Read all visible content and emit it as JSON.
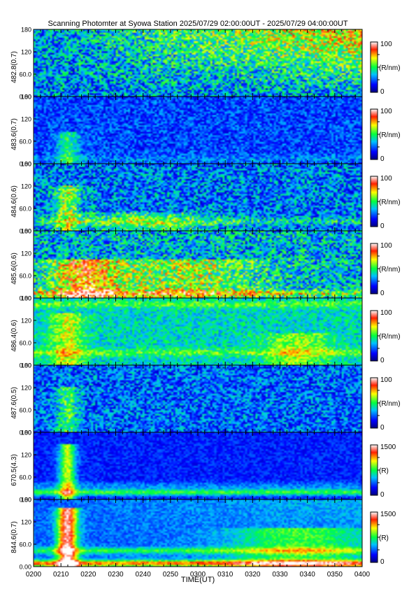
{
  "chart_data": {
    "type": "heatmap",
    "title": "Scanning Photomter at Syowa Station 2025/07/29 02:00:00UT - 2025/07/29 04:00:00UT",
    "xlabel": "TIME(UT)",
    "x_ticks": [
      "0200",
      "0210",
      "0220",
      "0230",
      "0240",
      "0250",
      "0300",
      "0310",
      "0320",
      "0330",
      "0340",
      "0350",
      "0400"
    ],
    "y_ticks": [
      "0.00",
      "60.0",
      "120",
      "180"
    ],
    "ylim": [
      0,
      180
    ],
    "panels": [
      {
        "ylabel": "482.8(0.7)",
        "cbar_max": "100",
        "cbar_min": "0",
        "cbar_unit": "(R/nm)",
        "vmax": 100,
        "base": 0.3,
        "noise": 0.45,
        "trend": 0.45,
        "bursts": [],
        "bands": []
      },
      {
        "ylabel": "483.6(0.7)",
        "cbar_max": "100",
        "cbar_min": "0",
        "cbar_unit": "(R/nm)",
        "vmax": 100,
        "base": 0.22,
        "noise": 0.25,
        "trend": 0.0,
        "bursts": [
          {
            "t": 0.1,
            "w": 0.035,
            "h": 0.5,
            "a": 0.25
          }
        ],
        "bands": [
          {
            "y": 0.08,
            "a": 0.08
          }
        ]
      },
      {
        "ylabel": "484.6(0.6)",
        "cbar_max": "100",
        "cbar_min": "0",
        "cbar_unit": "(R/nm)",
        "vmax": 100,
        "base": 0.28,
        "noise": 0.4,
        "trend": 0.0,
        "bursts": [
          {
            "t": 0.1,
            "w": 0.04,
            "h": 0.7,
            "a": 0.3
          },
          {
            "t": 0.35,
            "w": 0.2,
            "h": 0.3,
            "a": 0.2
          }
        ],
        "bands": [
          {
            "y": 0.15,
            "a": 0.15
          }
        ]
      },
      {
        "ylabel": "485.6(0.6)",
        "cbar_max": "100",
        "cbar_min": "0",
        "cbar_unit": "(R/nm)",
        "vmax": 100,
        "base": 0.35,
        "noise": 0.45,
        "trend": 0.0,
        "bursts": [
          {
            "t": 0.15,
            "w": 0.1,
            "h": 0.6,
            "a": 0.4
          },
          {
            "t": 0.45,
            "w": 0.25,
            "h": 0.6,
            "a": 0.25
          }
        ],
        "bands": [
          {
            "y": 0.08,
            "a": 0.25
          }
        ]
      },
      {
        "ylabel": "486.4(0.6)",
        "cbar_max": "100",
        "cbar_min": "0",
        "cbar_unit": "(R/nm)",
        "vmax": 100,
        "base": 0.4,
        "noise": 0.25,
        "trend": 0.0,
        "bursts": [
          {
            "t": 0.1,
            "w": 0.05,
            "h": 0.8,
            "a": 0.25
          },
          {
            "t": 0.8,
            "w": 0.1,
            "h": 0.5,
            "a": 0.2
          }
        ],
        "bands": [
          {
            "y": 0.2,
            "a": 0.15
          },
          {
            "y": 0.92,
            "a": 0.15
          }
        ]
      },
      {
        "ylabel": "487.6(0.5)",
        "cbar_max": "100",
        "cbar_min": "0",
        "cbar_unit": "(R/nm)",
        "vmax": 100,
        "base": 0.26,
        "noise": 0.35,
        "trend": 0.0,
        "bursts": [
          {
            "t": 0.1,
            "w": 0.035,
            "h": 0.7,
            "a": 0.25
          }
        ],
        "bands": []
      },
      {
        "ylabel": "670.5(4.3)",
        "cbar_max": "1500",
        "cbar_min": "0",
        "cbar_unit": "(R)",
        "vmax": 1500,
        "base": 0.18,
        "noise": 0.15,
        "trend": 0.0,
        "bursts": [
          {
            "t": 0.1,
            "w": 0.025,
            "h": 0.85,
            "a": 0.45
          }
        ],
        "bands": [
          {
            "y": 0.12,
            "a": 0.35
          },
          {
            "y": 0.22,
            "a": 0.1
          }
        ]
      },
      {
        "ylabel": "844.6(0.7)",
        "cbar_max": "1500",
        "cbar_min": "0",
        "cbar_unit": "(R)",
        "vmax": 1500,
        "base": 0.25,
        "noise": 0.15,
        "trend": 0.1,
        "bursts": [
          {
            "t": 0.1,
            "w": 0.03,
            "h": 0.9,
            "a": 0.7
          },
          {
            "t": 0.8,
            "w": 0.2,
            "h": 0.6,
            "a": 0.25
          }
        ],
        "bands": [
          {
            "y": 0.06,
            "a": 0.55
          },
          {
            "y": 0.25,
            "a": 0.25
          }
        ]
      }
    ]
  }
}
